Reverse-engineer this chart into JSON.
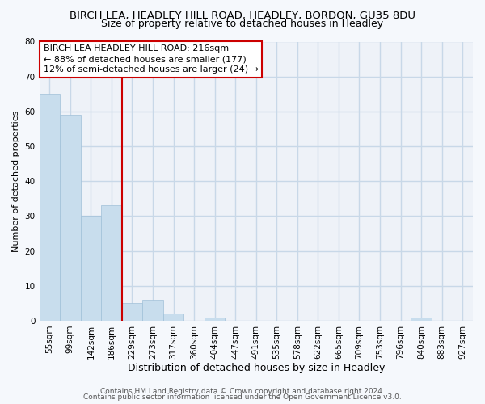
{
  "title": "BIRCH LEA, HEADLEY HILL ROAD, HEADLEY, BORDON, GU35 8DU",
  "subtitle": "Size of property relative to detached houses in Headley",
  "xlabel": "Distribution of detached houses by size in Headley",
  "ylabel": "Number of detached properties",
  "categories": [
    "55sqm",
    "99sqm",
    "142sqm",
    "186sqm",
    "229sqm",
    "273sqm",
    "317sqm",
    "360sqm",
    "404sqm",
    "447sqm",
    "491sqm",
    "535sqm",
    "578sqm",
    "622sqm",
    "665sqm",
    "709sqm",
    "753sqm",
    "796sqm",
    "840sqm",
    "883sqm",
    "927sqm"
  ],
  "values": [
    65,
    59,
    30,
    33,
    5,
    6,
    2,
    0,
    1,
    0,
    0,
    0,
    0,
    0,
    0,
    0,
    0,
    0,
    1,
    0,
    0
  ],
  "bar_color": "#c8dded",
  "bar_edge_color": "#a0c0d8",
  "vline_color": "#cc0000",
  "vline_position": 3.5,
  "annotation_line1": "BIRCH LEA HEADLEY HILL ROAD: 216sqm",
  "annotation_line2": "← 88% of detached houses are smaller (177)",
  "annotation_line3": "12% of semi-detached houses are larger (24) →",
  "annotation_box_facecolor": "#ffffff",
  "annotation_box_edgecolor": "#cc0000",
  "ylim": [
    0,
    80
  ],
  "yticks": [
    0,
    10,
    20,
    30,
    40,
    50,
    60,
    70,
    80
  ],
  "footer_line1": "Contains HM Land Registry data © Crown copyright and database right 2024.",
  "footer_line2": "Contains public sector information licensed under the Open Government Licence v3.0.",
  "fig_bg_color": "#f5f8fc",
  "plot_bg_color": "#eef2f8",
  "grid_color": "#c8d8e8",
  "title_fontsize": 9.5,
  "subtitle_fontsize": 9,
  "ylabel_fontsize": 8,
  "xlabel_fontsize": 9,
  "tick_fontsize": 7.5,
  "annotation_fontsize": 8,
  "footer_fontsize": 6.5
}
